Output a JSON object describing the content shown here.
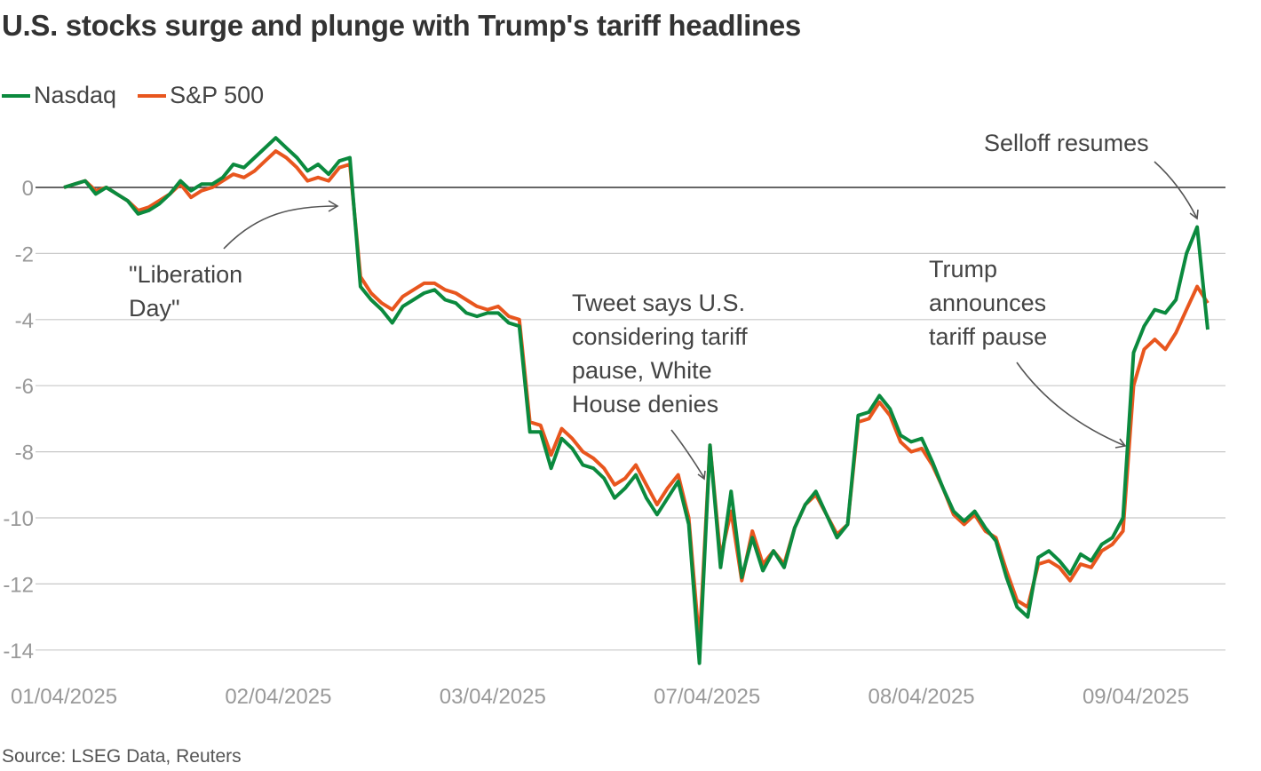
{
  "title": "U.S. stocks surge and plunge with Trump's tariff headlines",
  "source": "Source: LSEG Data, Reuters",
  "colors": {
    "nasdaq": "#0b8a3e",
    "sp500": "#e8561e",
    "grid": "#c8c8c8",
    "zero": "#333333"
  },
  "chart_data": {
    "type": "line",
    "title": "U.S. stocks surge and plunge with Trump's tariff headlines",
    "x_tick_labels": [
      "01/04/2025",
      "02/04/2025",
      "03/04/2025",
      "07/04/2025",
      "08/04/2025",
      "09/04/2025"
    ],
    "y_ticks": [
      0,
      -2,
      -4,
      -6,
      -8,
      -10,
      -12,
      -14
    ],
    "ylim": [
      -14.6,
      1.8
    ],
    "grid": true,
    "legend_placement": "top-left",
    "series": [
      {
        "name": "Nasdaq",
        "values": [
          0,
          0.1,
          0.2,
          -0.2,
          0,
          -0.2,
          -0.4,
          -0.8,
          -0.7,
          -0.5,
          -0.2,
          0.2,
          -0.1,
          0.1,
          0.1,
          0.3,
          0.7,
          0.6,
          0.9,
          1.2,
          1.5,
          1.2,
          0.9,
          0.5,
          0.7,
          0.4,
          0.8,
          0.9,
          -3.0,
          -3.4,
          -3.7,
          -4.1,
          -3.6,
          -3.4,
          -3.2,
          -3.1,
          -3.4,
          -3.5,
          -3.8,
          -3.9,
          -3.8,
          -3.8,
          -4.1,
          -4.2,
          -7.4,
          -7.4,
          -8.5,
          -7.6,
          -7.9,
          -8.4,
          -8.5,
          -8.8,
          -9.4,
          -9.1,
          -8.7,
          -9.4,
          -9.9,
          -9.4,
          -8.9,
          -10.2,
          -14.4,
          -7.8,
          -11.5,
          -9.2,
          -11.8,
          -10.6,
          -11.6,
          -11.0,
          -11.5,
          -10.3,
          -9.6,
          -9.2,
          -9.9,
          -10.6,
          -10.2,
          -6.9,
          -6.8,
          -6.3,
          -6.7,
          -7.5,
          -7.7,
          -7.6,
          -8.3,
          -9.1,
          -9.8,
          -10.1,
          -9.8,
          -10.3,
          -10.7,
          -11.8,
          -12.7,
          -13.0,
          -11.2,
          -11.0,
          -11.3,
          -11.7,
          -11.1,
          -11.3,
          -10.8,
          -10.6,
          -10.0,
          -5.0,
          -4.2,
          -3.7,
          -3.8,
          -3.4,
          -2.0,
          -1.2,
          -4.3
        ]
      },
      {
        "name": "S&P 500",
        "values": [
          0,
          0.1,
          0.2,
          -0.1,
          0,
          -0.2,
          -0.4,
          -0.7,
          -0.6,
          -0.4,
          -0.2,
          0.1,
          -0.3,
          -0.1,
          0,
          0.2,
          0.4,
          0.3,
          0.5,
          0.8,
          1.1,
          0.9,
          0.6,
          0.2,
          0.3,
          0.2,
          0.6,
          0.7,
          -2.7,
          -3.2,
          -3.5,
          -3.7,
          -3.3,
          -3.1,
          -2.9,
          -2.9,
          -3.1,
          -3.2,
          -3.4,
          -3.6,
          -3.7,
          -3.6,
          -3.9,
          -4.0,
          -7.1,
          -7.2,
          -8.1,
          -7.3,
          -7.6,
          -8.0,
          -8.2,
          -8.5,
          -9.0,
          -8.8,
          -8.4,
          -9.0,
          -9.6,
          -9.1,
          -8.7,
          -10.0,
          -13.8,
          -7.8,
          -11.2,
          -9.8,
          -11.9,
          -10.4,
          -11.4,
          -11.0,
          -11.4,
          -10.3,
          -9.6,
          -9.3,
          -9.9,
          -10.5,
          -10.2,
          -7.1,
          -7.0,
          -6.5,
          -6.9,
          -7.7,
          -8.0,
          -7.9,
          -8.4,
          -9.1,
          -9.9,
          -10.2,
          -9.9,
          -10.4,
          -10.6,
          -11.6,
          -12.5,
          -12.7,
          -11.4,
          -11.3,
          -11.5,
          -11.9,
          -11.4,
          -11.5,
          -11.0,
          -10.8,
          -10.4,
          -6.0,
          -4.9,
          -4.6,
          -4.9,
          -4.4,
          -3.7,
          -3.0,
          -3.5
        ]
      }
    ],
    "annotations": [
      {
        "lines": [
          "\"Liberation",
          "Day\""
        ]
      },
      {
        "lines": [
          "Tweet says U.S.",
          "considering tariff",
          "pause, White",
          "House denies"
        ]
      },
      {
        "lines": [
          "Trump",
          "announces",
          "tariff pause"
        ]
      },
      {
        "lines": [
          "Selloff resumes"
        ]
      }
    ]
  }
}
